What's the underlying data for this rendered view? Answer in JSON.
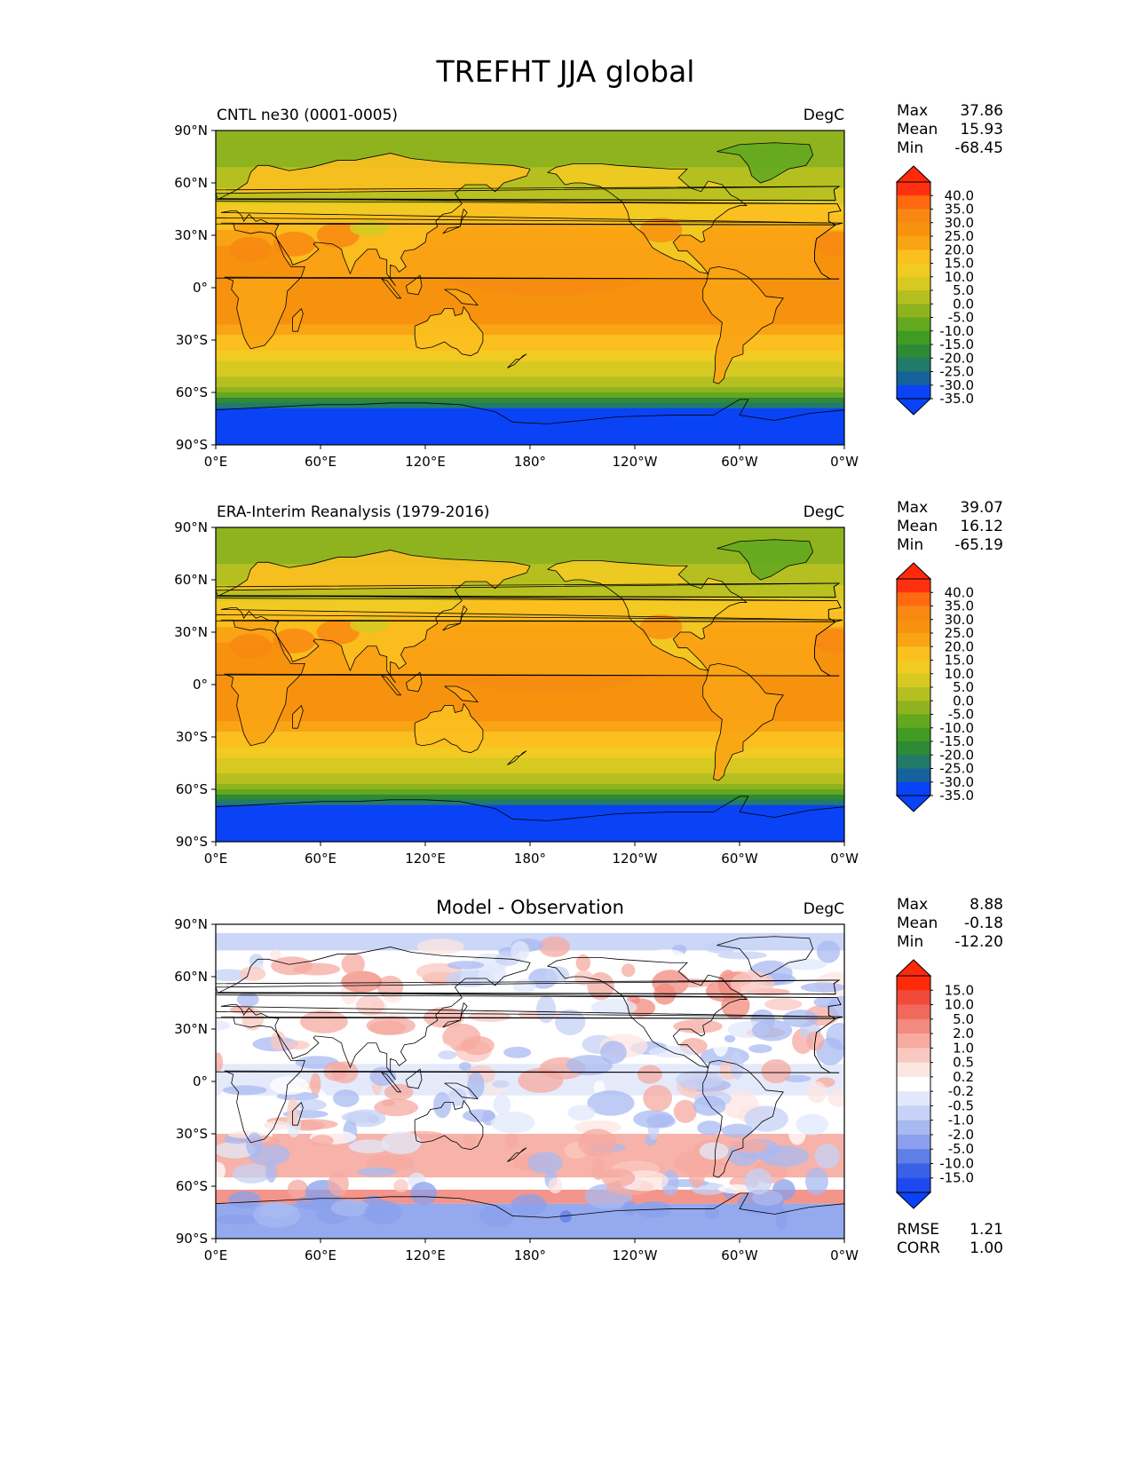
{
  "figure": {
    "title": "TREFHT JJA global"
  },
  "colors": {
    "ocean_warm": "#f7920e",
    "land_warm": "#fbbf1f",
    "antarctic": "#0a43f5",
    "coast": "#000000"
  },
  "chart_data": [
    {
      "type": "contour-map",
      "title_left": "CNTL ne30 (0001-0005)",
      "title_center": "",
      "units": "DegC",
      "ylabel": "",
      "xlabel": "",
      "xlim": [
        0,
        360
      ],
      "ylim": [
        -90,
        90
      ],
      "x_ticks": [
        "0°E",
        "60°E",
        "120°E",
        "180°",
        "120°W",
        "60°W",
        "0°W"
      ],
      "y_ticks": [
        "90°N",
        "60°N",
        "30°N",
        "0°",
        "30°S",
        "60°S",
        "90°S"
      ],
      "stats": [
        {
          "label": "Max",
          "value": "37.86"
        },
        {
          "label": "Mean",
          "value": "15.93"
        },
        {
          "label": "Min",
          "value": "-68.45"
        }
      ],
      "colorbar": {
        "levels": [
          "40.0",
          "35.0",
          "30.0",
          "25.0",
          "20.0",
          "15.0",
          "10.0",
          "5.0",
          "0.0",
          "-5.0",
          "-10.0",
          "-15.0",
          "-20.0",
          "-25.0",
          "-30.0",
          "-35.0"
        ],
        "colors": [
          "#ff3010",
          "#ff6a10",
          "#f88812",
          "#f7920e",
          "#f9a414",
          "#fbbf1f",
          "#f2cb22",
          "#d8c922",
          "#b5c020",
          "#8fb31e",
          "#64a81f",
          "#3f9b22",
          "#2e8a35",
          "#227a6a",
          "#16629a",
          "#0a43f5"
        ],
        "extend_top_color": "#ff2a0a",
        "extend_bottom_color": "#0a43f5"
      },
      "footer": [],
      "map_variant": "temperature",
      "seed": 11
    },
    {
      "type": "contour-map",
      "title_left": "ERA-Interim Reanalysis (1979-2016)",
      "title_center": "",
      "units": "DegC",
      "ylabel": "",
      "xlabel": "",
      "xlim": [
        0,
        360
      ],
      "ylim": [
        -90,
        90
      ],
      "x_ticks": [
        "0°E",
        "60°E",
        "120°E",
        "180°",
        "120°W",
        "60°W",
        "0°W"
      ],
      "y_ticks": [
        "90°N",
        "60°N",
        "30°N",
        "0°",
        "30°S",
        "60°S",
        "90°S"
      ],
      "stats": [
        {
          "label": "Max",
          "value": "39.07"
        },
        {
          "label": "Mean",
          "value": "16.12"
        },
        {
          "label": "Min",
          "value": "-65.19"
        }
      ],
      "colorbar": {
        "levels": [
          "40.0",
          "35.0",
          "30.0",
          "25.0",
          "20.0",
          "15.0",
          "10.0",
          "5.0",
          "0.0",
          "-5.0",
          "-10.0",
          "-15.0",
          "-20.0",
          "-25.0",
          "-30.0",
          "-35.0"
        ],
        "colors": [
          "#ff3010",
          "#ff6a10",
          "#f88812",
          "#f7920e",
          "#f9a414",
          "#fbbf1f",
          "#f2cb22",
          "#d8c922",
          "#b5c020",
          "#8fb31e",
          "#64a81f",
          "#3f9b22",
          "#2e8a35",
          "#227a6a",
          "#16629a",
          "#0a43f5"
        ],
        "extend_top_color": "#ff2a0a",
        "extend_bottom_color": "#0a43f5"
      },
      "footer": [],
      "map_variant": "temperature",
      "seed": 23
    },
    {
      "type": "contour-map",
      "title_left": "",
      "title_center": "Model - Observation",
      "units": "DegC",
      "ylabel": "",
      "xlabel": "",
      "xlim": [
        0,
        360
      ],
      "ylim": [
        -90,
        90
      ],
      "x_ticks": [
        "0°E",
        "60°E",
        "120°E",
        "180°",
        "120°W",
        "60°W",
        "0°W"
      ],
      "y_ticks": [
        "90°N",
        "60°N",
        "30°N",
        "0°",
        "30°S",
        "60°S",
        "90°S"
      ],
      "stats": [
        {
          "label": "Max",
          "value": "8.88"
        },
        {
          "label": "Mean",
          "value": "-0.18"
        },
        {
          "label": "Min",
          "value": "-12.20"
        }
      ],
      "colorbar": {
        "levels": [
          "15.0",
          "10.0",
          "5.0",
          "2.0",
          "1.0",
          "0.5",
          "0.2",
          "-0.2",
          "-0.5",
          "-1.0",
          "-2.0",
          "-5.0",
          "-10.0",
          "-15.0"
        ],
        "colors": [
          "#ff2a0a",
          "#f24a3a",
          "#f0695a",
          "#f28a7e",
          "#f6aaa0",
          "#f9c8c0",
          "#fce6e2",
          "#ffffff",
          "#e2e8fb",
          "#c6d2f6",
          "#a8b9f1",
          "#8aa0ec",
          "#5f7fe6",
          "#3a60e6",
          "#1f49f0"
        ],
        "extend_top_color": "#ff2a0a",
        "extend_bottom_color": "#0a43f5"
      },
      "footer": [
        {
          "label": "RMSE",
          "value": "1.21"
        },
        {
          "label": "CORR",
          "value": "1.00"
        }
      ],
      "map_variant": "difference",
      "seed": 37
    }
  ]
}
